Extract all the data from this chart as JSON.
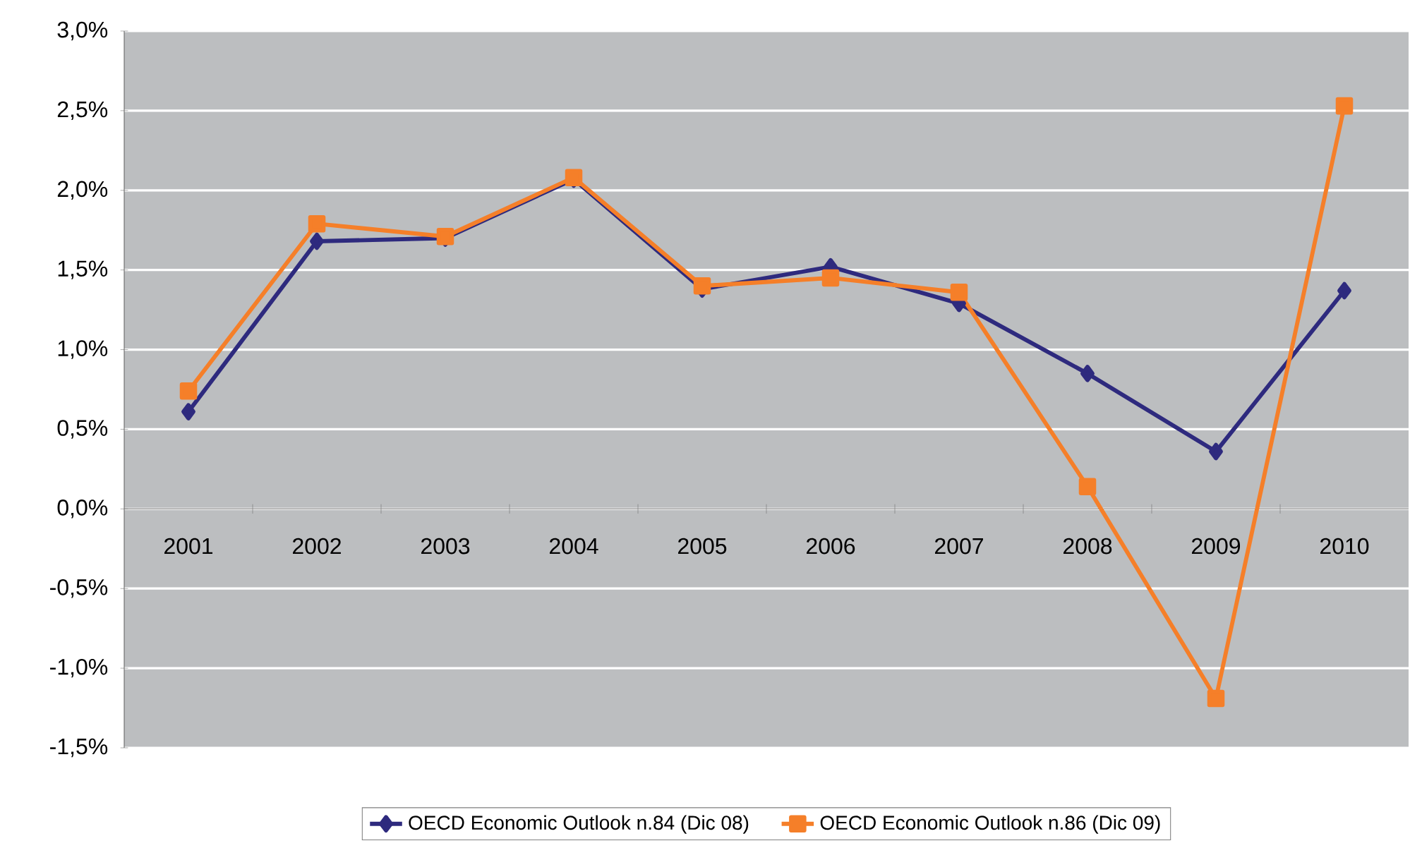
{
  "chart_data": {
    "type": "line",
    "categories": [
      "2001",
      "2002",
      "2003",
      "2004",
      "2005",
      "2006",
      "2007",
      "2008",
      "2009",
      "2010"
    ],
    "series": [
      {
        "name": "OECD Economic Outlook n.84 (Dic 08)",
        "color": "#2e2a7e",
        "marker": "diamond",
        "values": [
          0.61,
          1.68,
          1.7,
          2.07,
          1.38,
          1.52,
          1.29,
          0.85,
          0.36,
          1.37
        ]
      },
      {
        "name": "OECD Economic Outlook n.86 (Dic 09)",
        "color": "#f57f29",
        "marker": "square",
        "values": [
          0.74,
          1.79,
          1.71,
          2.08,
          1.4,
          1.45,
          1.36,
          0.14,
          -1.19,
          2.53
        ]
      }
    ],
    "ylim": [
      -1.5,
      3.0
    ],
    "yticks": [
      {
        "value": -1.5,
        "label": "-1,5%"
      },
      {
        "value": -1.0,
        "label": "-1,0%"
      },
      {
        "value": -0.5,
        "label": "-0,5%"
      },
      {
        "value": 0.0,
        "label": "0,0%"
      },
      {
        "value": 0.5,
        "label": "0,5%"
      },
      {
        "value": 1.0,
        "label": "1,0%"
      },
      {
        "value": 1.5,
        "label": "1,5%"
      },
      {
        "value": 2.0,
        "label": "2,0%"
      },
      {
        "value": 2.5,
        "label": "2,5%"
      },
      {
        "value": 3.0,
        "label": "3,0%"
      }
    ],
    "grid": "y",
    "legend": "bottom",
    "line_style": "solid"
  }
}
